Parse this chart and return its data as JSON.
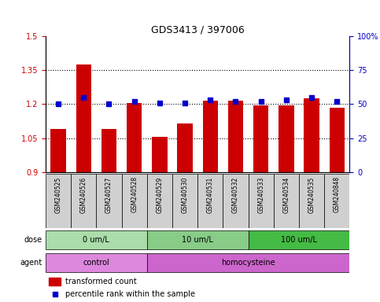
{
  "title": "GDS3413 / 397006",
  "samples": [
    "GSM240525",
    "GSM240526",
    "GSM240527",
    "GSM240528",
    "GSM240529",
    "GSM240530",
    "GSM240531",
    "GSM240532",
    "GSM240533",
    "GSM240534",
    "GSM240535",
    "GSM240848"
  ],
  "transformed_count": [
    1.09,
    1.375,
    1.09,
    1.205,
    1.055,
    1.115,
    1.215,
    1.215,
    1.195,
    1.195,
    1.225,
    1.185
  ],
  "percentile_rank": [
    50,
    55,
    50,
    52,
    51,
    51,
    53,
    52,
    52,
    53,
    55,
    52
  ],
  "bar_color": "#cc0000",
  "dot_color": "#0000cc",
  "ylim_left": [
    0.9,
    1.5
  ],
  "ylim_right": [
    0,
    100
  ],
  "yticks_left": [
    0.9,
    1.05,
    1.2,
    1.35,
    1.5
  ],
  "yticks_right": [
    0,
    25,
    50,
    75,
    100
  ],
  "ytick_labels_left": [
    "0.9",
    "1.05",
    "1.2",
    "1.35",
    "1.5"
  ],
  "ytick_labels_right": [
    "0",
    "25",
    "50",
    "75",
    "100%"
  ],
  "dose_groups": [
    {
      "label": "0 um/L",
      "start": 0,
      "end": 4,
      "color": "#aaddaa"
    },
    {
      "label": "10 um/L",
      "start": 4,
      "end": 8,
      "color": "#88cc88"
    },
    {
      "label": "100 um/L",
      "start": 8,
      "end": 12,
      "color": "#44bb44"
    }
  ],
  "agent_groups": [
    {
      "label": "control",
      "start": 0,
      "end": 4,
      "color": "#dd88dd"
    },
    {
      "label": "homocysteine",
      "start": 4,
      "end": 12,
      "color": "#cc66cc"
    }
  ],
  "dose_label": "dose",
  "agent_label": "agent",
  "legend_bar_label": "transformed count",
  "legend_dot_label": "percentile rank within the sample",
  "dotted_line_color": "#000000",
  "axis_color_left": "#cc0000",
  "axis_color_right": "#0000cc",
  "bg_color": "#ffffff",
  "plot_bg": "#ffffff"
}
